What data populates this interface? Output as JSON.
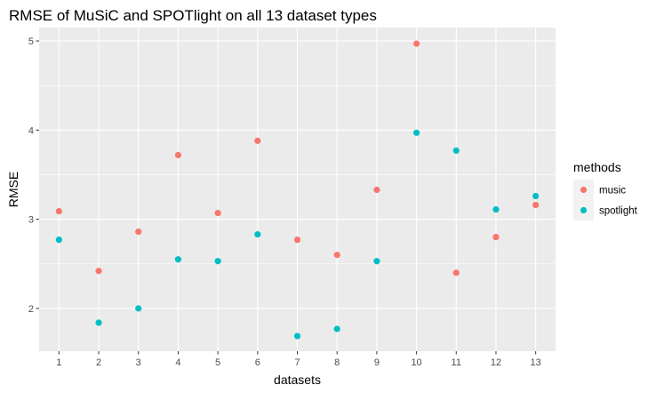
{
  "chart_data": {
    "type": "scatter",
    "title": "RMSE of MuSiC and SPOTlight on all 13 dataset types",
    "xlabel": "datasets",
    "ylabel": "RMSE",
    "x": [
      1,
      2,
      3,
      4,
      5,
      6,
      7,
      8,
      9,
      10,
      11,
      12,
      13
    ],
    "x_tick_labels": [
      "1",
      "2",
      "3",
      "4",
      "5",
      "6",
      "7",
      "8",
      "9",
      "10",
      "11",
      "12",
      "13"
    ],
    "y_ticks": [
      2,
      3,
      4,
      5
    ],
    "y_tick_labels": [
      "2",
      "3",
      "4",
      "5"
    ],
    "xlim": [
      0.5,
      13.5
    ],
    "ylim": [
      1.52,
      5.15
    ],
    "grid": true,
    "legend": {
      "title": "methods",
      "placement": "right"
    },
    "series": [
      {
        "name": "music",
        "color": "#F8766D",
        "values": [
          3.09,
          2.42,
          2.86,
          3.72,
          3.07,
          3.88,
          2.77,
          2.6,
          3.33,
          4.97,
          2.4,
          2.8,
          3.16
        ]
      },
      {
        "name": "spotlight",
        "color": "#00BFC4",
        "values": [
          2.77,
          1.84,
          2.0,
          2.55,
          2.53,
          2.83,
          1.69,
          1.77,
          2.53,
          3.97,
          3.77,
          3.11,
          3.26
        ]
      }
    ],
    "panel_background": "#EBEBEB",
    "grid_color": "#FFFFFF"
  }
}
